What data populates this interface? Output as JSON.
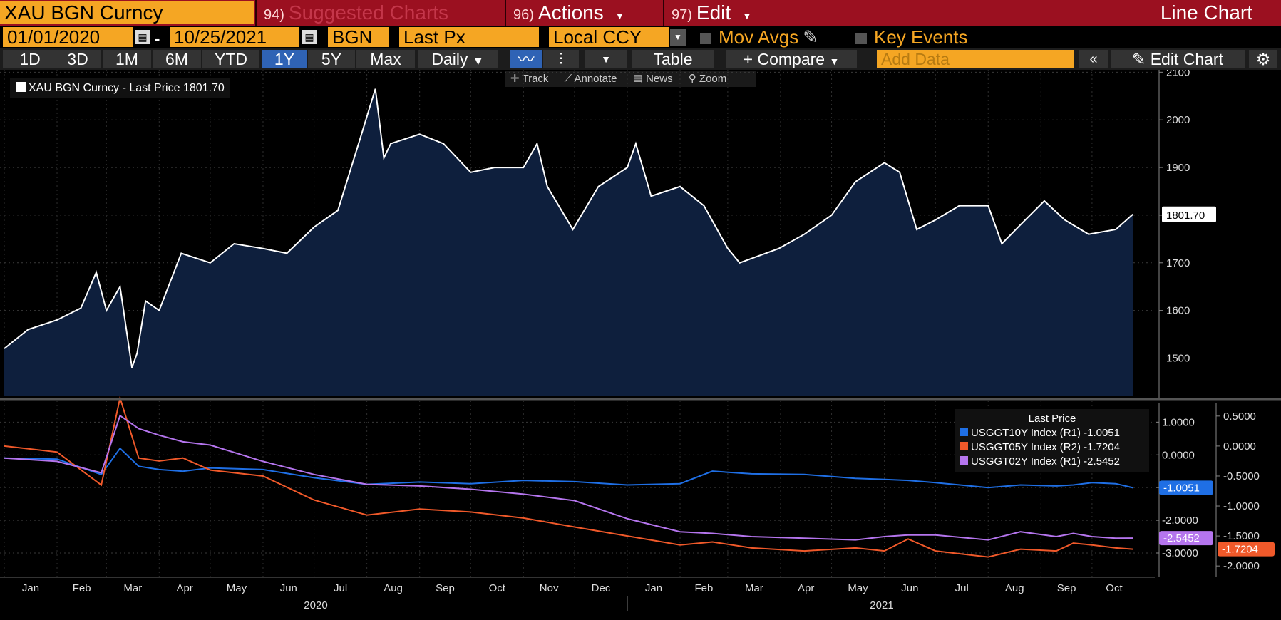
{
  "header": {
    "ticker": "XAU BGN Curncy",
    "menus": [
      {
        "num": "94)",
        "label": "Suggested Charts"
      },
      {
        "num": "96)",
        "label": "Actions"
      },
      {
        "num": "97)",
        "label": "Edit"
      }
    ],
    "chart_title": "Line Chart"
  },
  "params": {
    "start_date": "01/01/2020",
    "end_date": "10/25/2021",
    "source": "BGN",
    "field": "Last Px",
    "currency": "Local CCY",
    "mov_avgs": "Mov Avgs",
    "key_events": "Key Events"
  },
  "toolbar": {
    "ranges": [
      "1D",
      "3D",
      "1M",
      "6M",
      "YTD",
      "1Y",
      "5Y",
      "Max"
    ],
    "active_range": "1Y",
    "frequency": "Daily",
    "table_label": "Table",
    "compare_label": "+ Compare",
    "add_data_placeholder": "Add Data",
    "edit_chart_label": "Edit Chart"
  },
  "chart_tools": [
    "Track",
    "Annotate",
    "News",
    "Zoom"
  ],
  "colors": {
    "accent_orange": "#f5a623",
    "header_red": "#9b1020",
    "area_fill": "#0e1f3d",
    "gold_line": "#ffffff",
    "usggt10y": "#1f6fe5",
    "usggt05y": "#f0592a",
    "usggt02y": "#b575ee"
  },
  "chart_data": [
    {
      "type": "area",
      "legend": "XAU BGN Curncy - Last Price 1801.70",
      "last_value_label": "1801.70",
      "yticks": [
        1500,
        1600,
        1700,
        1800,
        1900,
        2000,
        2100
      ],
      "ylim": [
        1420,
        2105
      ],
      "x": [
        "2020-01-01",
        "2020-01-15",
        "2020-02-01",
        "2020-02-15",
        "2020-02-24",
        "2020-03-01",
        "2020-03-09",
        "2020-03-16",
        "2020-03-19",
        "2020-03-24",
        "2020-04-01",
        "2020-04-14",
        "2020-05-01",
        "2020-05-15",
        "2020-06-01",
        "2020-06-15",
        "2020-07-01",
        "2020-07-15",
        "2020-07-28",
        "2020-08-06",
        "2020-08-11",
        "2020-08-15",
        "2020-09-01",
        "2020-09-15",
        "2020-10-01",
        "2020-10-15",
        "2020-11-01",
        "2020-11-09",
        "2020-11-15",
        "2020-11-30",
        "2020-12-15",
        "2021-01-01",
        "2021-01-06",
        "2021-01-15",
        "2021-02-01",
        "2021-02-15",
        "2021-03-01",
        "2021-03-08",
        "2021-03-31",
        "2021-04-15",
        "2021-05-01",
        "2021-05-15",
        "2021-06-01",
        "2021-06-10",
        "2021-06-20",
        "2021-07-01",
        "2021-07-15",
        "2021-08-01",
        "2021-08-09",
        "2021-08-20",
        "2021-09-03",
        "2021-09-15",
        "2021-09-29",
        "2021-10-15",
        "2021-10-25"
      ],
      "values": [
        1520,
        1560,
        1580,
        1605,
        1680,
        1600,
        1650,
        1480,
        1510,
        1620,
        1600,
        1720,
        1700,
        1740,
        1730,
        1720,
        1775,
        1810,
        1960,
        2065,
        1920,
        1950,
        1970,
        1950,
        1890,
        1900,
        1900,
        1950,
        1860,
        1770,
        1860,
        1900,
        1950,
        1840,
        1860,
        1820,
        1730,
        1700,
        1730,
        1760,
        1800,
        1870,
        1910,
        1890,
        1770,
        1790,
        1820,
        1820,
        1740,
        1780,
        1830,
        1790,
        1760,
        1770,
        1801.7
      ]
    },
    {
      "type": "line",
      "legend_title": "Last Price",
      "x_ticks": [
        "Jan",
        "Feb",
        "Mar",
        "Apr",
        "May",
        "Jun",
        "Jul",
        "Aug",
        "Sep",
        "Oct",
        "Nov",
        "Dec",
        "Jan",
        "Feb",
        "Mar",
        "Apr",
        "May",
        "Jun",
        "Jul",
        "Aug",
        "Sep",
        "Oct"
      ],
      "year_labels": [
        "2020",
        "2021"
      ],
      "left_axis_ticks": [
        "1.0000",
        "0.0000",
        "-1.0000",
        "-2.0000",
        "-3.0000"
      ],
      "right_axis_ticks": [
        "0.5000",
        "0.0000",
        "-0.5000",
        "-1.0000",
        "-1.5000",
        "-2.0000"
      ],
      "x": [
        "2020-01-01",
        "2020-02-01",
        "2020-02-27",
        "2020-03-09",
        "2020-03-20",
        "2020-04-01",
        "2020-04-15",
        "2020-05-01",
        "2020-06-01",
        "2020-07-01",
        "2020-08-01",
        "2020-09-01",
        "2020-10-01",
        "2020-11-01",
        "2020-12-01",
        "2021-01-01",
        "2021-02-01",
        "2021-02-20",
        "2021-03-15",
        "2021-04-15",
        "2021-05-15",
        "2021-06-01",
        "2021-06-15",
        "2021-07-01",
        "2021-08-01",
        "2021-08-20",
        "2021-09-10",
        "2021-09-20",
        "2021-10-01",
        "2021-10-15",
        "2021-10-25"
      ],
      "series": [
        {
          "name": "USGGT10Y Index (R1) -1.0051",
          "axis": "left",
          "last_value": "-1.0051",
          "values": [
            -0.1,
            -0.13,
            -0.6,
            0.2,
            -0.35,
            -0.45,
            -0.5,
            -0.4,
            -0.45,
            -0.7,
            -0.9,
            -0.83,
            -0.88,
            -0.78,
            -0.82,
            -0.92,
            -0.88,
            -0.5,
            -0.58,
            -0.6,
            -0.72,
            -0.75,
            -0.78,
            -0.85,
            -1.0,
            -0.92,
            -0.95,
            -0.92,
            -0.85,
            -0.88,
            -1.0051
          ]
        },
        {
          "name": "USGGT05Y Index (R2) -1.7204",
          "axis": "right",
          "last_value": "-1.7204",
          "values": [
            0.0,
            -0.1,
            -0.65,
            0.8,
            -0.2,
            -0.25,
            -0.2,
            -0.4,
            -0.5,
            -0.9,
            -1.15,
            -1.05,
            -1.1,
            -1.2,
            -1.35,
            -1.5,
            -1.65,
            -1.6,
            -1.7,
            -1.75,
            -1.7,
            -1.75,
            -1.55,
            -1.75,
            -1.85,
            -1.72,
            -1.75,
            -1.62,
            -1.65,
            -1.7,
            -1.7204
          ]
        },
        {
          "name": "USGGT02Y Index (R1) -2.5452",
          "axis": "left",
          "last_value": "-2.5452",
          "values": [
            -0.1,
            -0.2,
            -0.55,
            1.2,
            0.8,
            0.6,
            0.4,
            0.3,
            -0.2,
            -0.6,
            -0.9,
            -0.95,
            -1.05,
            -1.2,
            -1.4,
            -1.95,
            -2.35,
            -2.4,
            -2.5,
            -2.55,
            -2.6,
            -2.5,
            -2.45,
            -2.45,
            -2.6,
            -2.35,
            -2.5,
            -2.4,
            -2.5,
            -2.55,
            -2.5452
          ]
        }
      ]
    }
  ]
}
